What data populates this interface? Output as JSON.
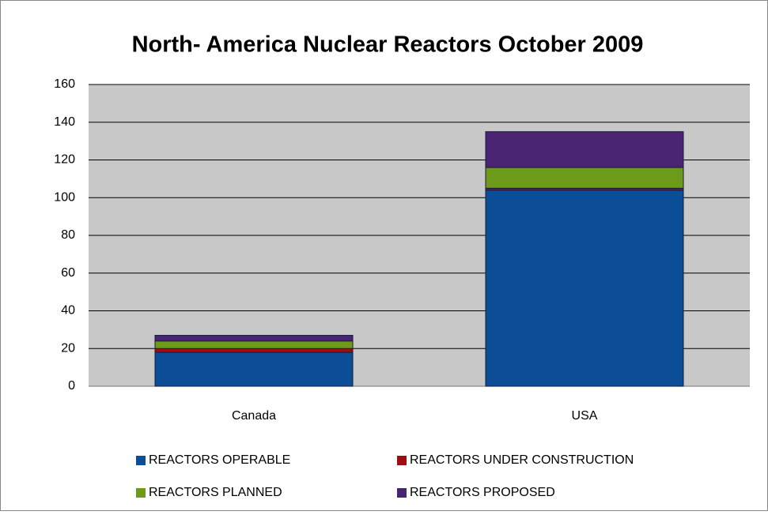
{
  "chart_data": {
    "type": "stacked_bar",
    "title": "North- America Nuclear Reactors October 2009",
    "categories": [
      "Canada",
      "USA"
    ],
    "series": [
      {
        "name": "REACTORS OPERABLE",
        "color": "#0b4d96",
        "values": [
          18,
          104
        ]
      },
      {
        "name": "REACTORS UNDER CONSTRUCTION",
        "color": "#a00d10",
        "values": [
          2,
          1
        ]
      },
      {
        "name": "REACTORS PLANNED",
        "color": "#6e9a1a",
        "values": [
          4,
          11
        ]
      },
      {
        "name": "REACTORS PROPOSED",
        "color": "#4a2472",
        "values": [
          3,
          19
        ]
      }
    ],
    "ylim": [
      0,
      160
    ],
    "yticks": [
      0,
      20,
      40,
      60,
      80,
      100,
      120,
      140,
      160
    ],
    "grid": true,
    "legend": "bottom"
  }
}
